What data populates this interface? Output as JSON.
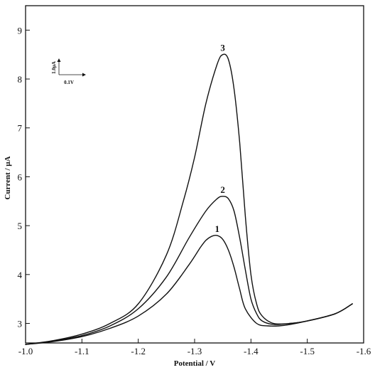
{
  "chart_data": {
    "type": "line",
    "title": "",
    "xlabel": "Potential / V",
    "ylabel": "Current / µA",
    "x_ticks": [
      "-1.0",
      "-1.1",
      "-1.2",
      "-1.3",
      "-1.4",
      "-1.5",
      "-1.6"
    ],
    "y_ticks": [
      "3",
      "4",
      "5",
      "6",
      "7",
      "8",
      "9"
    ],
    "xlim": [
      -1.0,
      -1.6
    ],
    "ylim": [
      2.6,
      9.5
    ],
    "x_axis_reversed": true,
    "grid": false,
    "legend": "none",
    "scale_bar": {
      "vertical": "1.0µA",
      "horizontal": "0.1V"
    },
    "series": [
      {
        "name": "1",
        "x": [
          -1.0,
          -1.05,
          -1.1,
          -1.15,
          -1.2,
          -1.25,
          -1.29,
          -1.31,
          -1.32,
          -1.33,
          -1.34,
          -1.35,
          -1.36,
          -1.37,
          -1.38,
          -1.39,
          -1.41,
          -1.43,
          -1.45,
          -1.47,
          -1.5,
          -1.55,
          -1.58
        ],
        "y": [
          2.57,
          2.63,
          2.73,
          2.9,
          3.15,
          3.6,
          4.2,
          4.55,
          4.7,
          4.78,
          4.8,
          4.72,
          4.5,
          4.15,
          3.7,
          3.3,
          3.0,
          2.95,
          2.95,
          2.98,
          3.05,
          3.2,
          3.4
        ]
      },
      {
        "name": "2",
        "x": [
          -1.0,
          -1.05,
          -1.1,
          -1.15,
          -1.2,
          -1.25,
          -1.29,
          -1.32,
          -1.34,
          -1.35,
          -1.36,
          -1.37,
          -1.38,
          -1.39,
          -1.4,
          -1.41,
          -1.42,
          -1.44,
          -1.47,
          -1.5,
          -1.55,
          -1.58
        ],
        "y": [
          2.57,
          2.64,
          2.75,
          2.95,
          3.3,
          3.95,
          4.75,
          5.3,
          5.55,
          5.6,
          5.55,
          5.3,
          4.75,
          4.1,
          3.5,
          3.2,
          3.05,
          2.98,
          3.0,
          3.05,
          3.2,
          3.4
        ]
      },
      {
        "name": "3",
        "x": [
          -1.0,
          -1.05,
          -1.1,
          -1.15,
          -1.2,
          -1.25,
          -1.28,
          -1.3,
          -1.32,
          -1.34,
          -1.35,
          -1.36,
          -1.37,
          -1.38,
          -1.39,
          -1.4,
          -1.41,
          -1.42,
          -1.44,
          -1.47,
          -1.5,
          -1.55,
          -1.58
        ],
        "y": [
          2.57,
          2.65,
          2.78,
          3.0,
          3.4,
          4.4,
          5.5,
          6.4,
          7.5,
          8.3,
          8.5,
          8.4,
          7.8,
          6.7,
          5.2,
          4.0,
          3.4,
          3.15,
          3.0,
          3.0,
          3.05,
          3.2,
          3.4
        ]
      }
    ]
  }
}
